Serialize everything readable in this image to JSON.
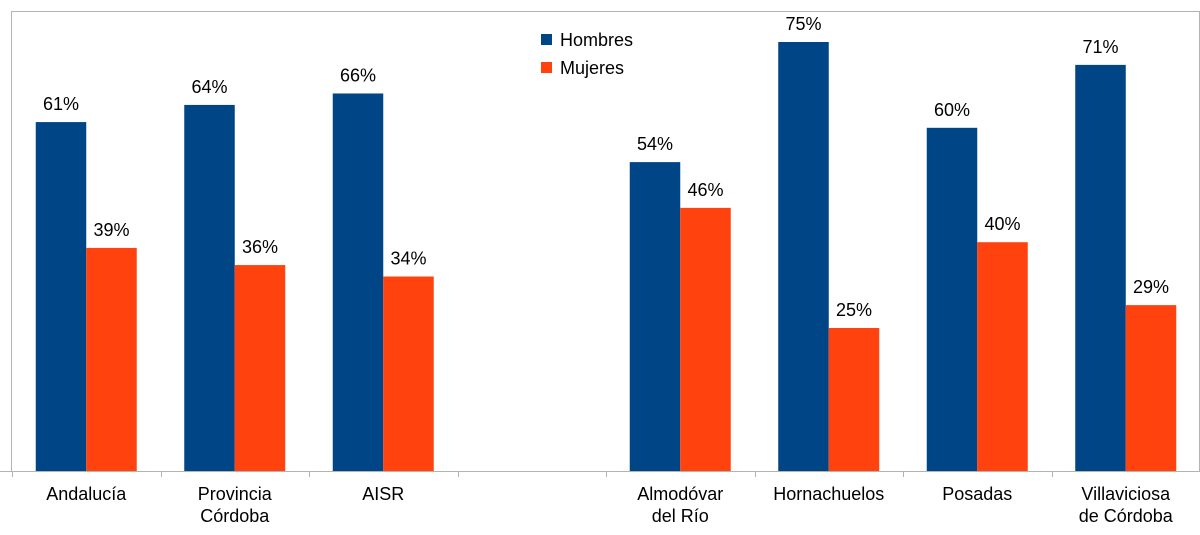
{
  "chart_data": {
    "type": "bar",
    "categories": [
      [
        "Andalucía"
      ],
      [
        "Provincia",
        "Córdoba"
      ],
      [
        "AISR"
      ],
      [
        ""
      ],
      [
        "Almodóvar",
        "del Río"
      ],
      [
        "Hornachuelos"
      ],
      [
        "Posadas"
      ],
      [
        "Villaviciosa",
        "de Córdoba"
      ]
    ],
    "series": [
      {
        "name": "Hombres",
        "color": "#004586",
        "values": [
          61,
          64,
          66,
          null,
          54,
          75,
          60,
          71
        ],
        "labels": [
          "61%",
          "64%",
          "66%",
          "",
          "54%",
          "75%",
          "60%",
          "71%"
        ]
      },
      {
        "name": "Mujeres",
        "color": "#ff420e",
        "values": [
          39,
          36,
          34,
          null,
          46,
          25,
          40,
          29
        ],
        "labels": [
          "39%",
          "36%",
          "34%",
          "",
          "46%",
          "25%",
          "40%",
          "29%"
        ]
      }
    ],
    "ylim": [
      0,
      80
    ],
    "grid": false,
    "legend": "top-center"
  }
}
